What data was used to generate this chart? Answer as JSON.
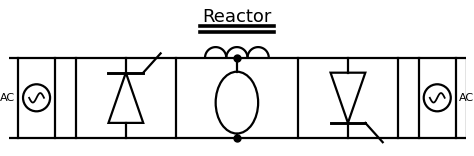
{
  "title": "Reactor",
  "title_fontsize": 13,
  "bg_color": "#ffffff",
  "line_color": "#000000",
  "line_width": 1.6,
  "fig_width": 4.74,
  "fig_height": 1.56,
  "dpi": 100
}
